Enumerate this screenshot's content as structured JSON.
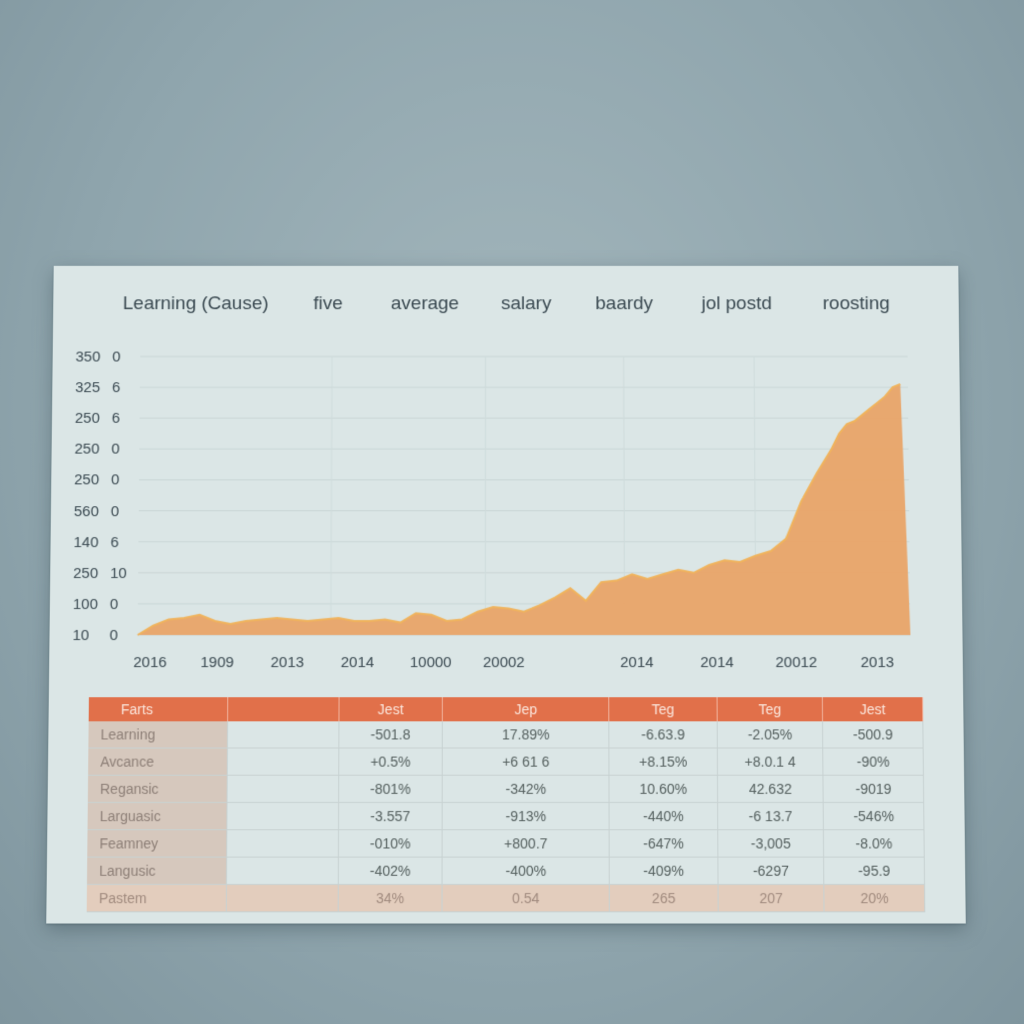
{
  "header_labels": [
    "Learning (Cause)",
    "five",
    "average",
    "salary",
    "baardy",
    "jol postd",
    "roosting"
  ],
  "chart_data": {
    "type": "area",
    "title": "",
    "xlabel": "",
    "ylabel": "",
    "y_tick_labels": [
      [
        "350",
        "0"
      ],
      [
        "325",
        "6"
      ],
      [
        "250",
        "6"
      ],
      [
        "250",
        "0"
      ],
      [
        "250",
        "0"
      ],
      [
        "560",
        "0"
      ],
      [
        "140",
        "6"
      ],
      [
        "250",
        "10"
      ],
      [
        "100",
        "0"
      ],
      [
        "10",
        "0"
      ]
    ],
    "x_tick_labels": [
      "2016",
      "1909",
      "2013",
      "2014",
      "10000",
      "20002",
      "2014",
      "2014",
      "20012",
      "2013"
    ],
    "grid": true,
    "ylim": [
      0,
      9
    ],
    "xlim": [
      0,
      100
    ],
    "area_color": "#e9a468",
    "line_color": "#f0b35c",
    "series": [
      {
        "x": [
          0,
          2,
          4,
          6,
          8,
          10,
          12,
          14,
          16,
          18,
          20,
          22,
          24,
          26,
          28,
          30,
          32,
          34,
          36,
          38,
          40,
          42,
          44,
          46,
          48,
          50,
          52,
          54,
          56,
          58,
          60,
          62,
          64,
          66,
          68,
          70,
          72,
          74,
          76,
          78,
          80,
          82,
          84,
          86,
          88,
          90,
          91,
          92,
          93,
          94,
          95,
          96,
          97,
          98,
          99,
          100
        ],
        "y": [
          0.0,
          0.3,
          0.5,
          0.55,
          0.65,
          0.45,
          0.35,
          0.45,
          0.5,
          0.55,
          0.5,
          0.45,
          0.5,
          0.55,
          0.45,
          0.45,
          0.5,
          0.4,
          0.7,
          0.65,
          0.45,
          0.5,
          0.75,
          0.9,
          0.85,
          0.75,
          0.95,
          1.2,
          1.5,
          1.1,
          1.7,
          1.75,
          1.95,
          1.8,
          1.95,
          2.1,
          2.0,
          2.25,
          2.4,
          2.35,
          2.55,
          2.7,
          3.1,
          4.3,
          5.2,
          6.0,
          6.5,
          6.8,
          6.9,
          7.1,
          7.3,
          7.5,
          7.7,
          8.0,
          8.1,
          0.0
        ]
      }
    ]
  },
  "table": {
    "headers": [
      "Farts",
      "",
      "Jest",
      "Jep",
      "Teg",
      "Teg",
      "Jest"
    ],
    "rows": [
      {
        "label": "Learning",
        "values": [
          "",
          "-501.8",
          "17.89%",
          "-6.63.9",
          "-2.05%",
          "-500.9"
        ]
      },
      {
        "label": "Avcance",
        "values": [
          "",
          "+0.5%",
          "+6 61 6",
          "+8.15%",
          "+8.0.1 4",
          "-90%"
        ]
      },
      {
        "label": "Regansic",
        "values": [
          "",
          "-801%",
          "-342%",
          "10.60%",
          "42.632",
          "-9019"
        ]
      },
      {
        "label": "Larguasic",
        "values": [
          "",
          "-3.557",
          "-913%",
          "-440%",
          "-6 13.7",
          "-546%"
        ]
      },
      {
        "label": "Feamney",
        "values": [
          "",
          "-010%",
          "+800.7",
          "-647%",
          "-3,005",
          "-8.0%"
        ]
      },
      {
        "label": "Langusic",
        "values": [
          "",
          "-402%",
          "-400%",
          "-409%",
          "-6297",
          "-95.9"
        ]
      }
    ],
    "footer": {
      "label": "Pastem",
      "values": [
        "",
        "34%",
        "0.54",
        "265",
        "207",
        "20%"
      ]
    }
  }
}
